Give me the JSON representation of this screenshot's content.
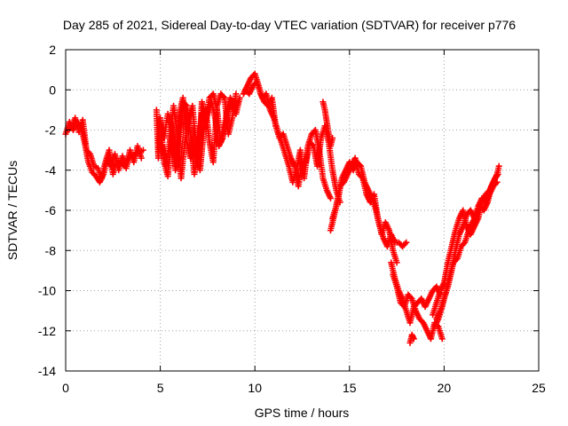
{
  "chart_data": {
    "type": "scatter",
    "title": "Day 285 of 2021, Sidereal Day-to-day VTEC variation (SDTVAR) for receiver p776",
    "xlabel": "GPS time / hours",
    "ylabel": "SDTVAR / TECUs",
    "xlim": [
      0,
      25
    ],
    "ylim": [
      -14,
      2
    ],
    "xticks": [
      "0",
      "5",
      "10",
      "15",
      "20",
      "25"
    ],
    "yticks": [
      "2",
      "0",
      "-2",
      "-4",
      "-6",
      "-8",
      "-10",
      "-12",
      "-14"
    ],
    "grid": true,
    "marker": "plus",
    "color": "#ff0000",
    "series": [
      {
        "x": [
          0.0,
          0.2,
          0.4,
          0.6,
          0.8,
          1.0,
          1.2,
          1.4,
          1.6,
          1.8,
          2.0,
          2.2,
          2.4,
          2.6,
          2.8,
          3.0,
          3.2,
          3.4,
          3.6,
          3.8,
          4.0
        ],
        "y": [
          -2.2,
          -1.6,
          -2.0,
          -1.6,
          -1.8,
          -2.6,
          -3.6,
          -4.1,
          -4.3,
          -4.6,
          -4.2,
          -3.4,
          -3.8,
          -3.2,
          -4.0,
          -3.3,
          -3.9,
          -3.0,
          -3.6,
          -2.8,
          -3.4
        ]
      },
      {
        "x": [
          0.1,
          0.3,
          0.5,
          0.7,
          0.9,
          1.1,
          1.3,
          1.5,
          1.7,
          1.9,
          2.1,
          2.3,
          2.5,
          2.7,
          2.9,
          3.1,
          3.3,
          3.5,
          3.7,
          3.9,
          4.1
        ],
        "y": [
          -2.0,
          -1.9,
          -1.4,
          -2.1,
          -1.5,
          -3.0,
          -3.2,
          -3.8,
          -3.9,
          -4.4,
          -3.6,
          -3.0,
          -4.2,
          -3.5,
          -3.6,
          -3.8,
          -3.4,
          -3.3,
          -3.2,
          -3.1,
          -3.0
        ]
      },
      {
        "x": [
          4.8,
          4.9,
          5.0,
          5.2,
          5.4,
          5.6,
          5.8,
          6.0,
          6.2,
          6.4,
          6.6,
          6.8,
          7.0,
          7.2,
          7.4,
          7.6,
          7.8,
          8.0,
          8.2,
          8.4,
          8.6,
          8.8,
          9.0,
          9.2
        ],
        "y": [
          -1.0,
          -3.4,
          -1.4,
          -3.6,
          -4.3,
          -2.2,
          -3.8,
          -1.2,
          -0.4,
          -2.6,
          -3.4,
          -1.8,
          -3.8,
          -0.6,
          -1.6,
          -0.4,
          -0.2,
          -1.0,
          -2.6,
          -2.0,
          -1.0,
          -0.6,
          -1.2,
          -0.4
        ]
      },
      {
        "x": [
          5.0,
          5.2,
          5.4,
          5.6,
          5.8,
          6.0,
          6.2,
          6.4,
          6.6,
          6.8,
          7.0,
          7.2,
          7.4,
          7.6,
          7.8,
          8.0,
          8.2,
          8.4,
          8.6,
          8.8,
          9.0
        ],
        "y": [
          -1.6,
          -2.4,
          -1.2,
          -1.8,
          -4.0,
          -3.2,
          -0.6,
          -0.8,
          -2.2,
          -4.2,
          -3.0,
          -1.2,
          -1.0,
          -2.6,
          -3.6,
          -0.8,
          -0.2,
          -0.4,
          -2.2,
          -1.4,
          -0.2
        ]
      },
      {
        "x": [
          5.1,
          5.3,
          5.5,
          5.7,
          5.9,
          6.1,
          6.3,
          6.5,
          6.7,
          6.9,
          7.1,
          7.3,
          7.5,
          7.7,
          7.9,
          8.1,
          8.3,
          8.5,
          8.7,
          8.9
        ],
        "y": [
          -2.8,
          -3.8,
          -2.6,
          -0.8,
          -2.2,
          -4.4,
          -2.6,
          -1.4,
          -0.8,
          -3.0,
          -4.0,
          -2.0,
          -1.2,
          -0.6,
          -1.4,
          -2.8,
          -2.4,
          -1.2,
          -0.4,
          -0.8
        ]
      },
      {
        "x": [
          9.4,
          9.6,
          9.8,
          10.0,
          10.2,
          10.4,
          10.6,
          10.8,
          11.0,
          11.2,
          11.4,
          11.6,
          11.8,
          12.0,
          12.2,
          12.4,
          12.6,
          12.8,
          13.0,
          13.2,
          13.4,
          13.6,
          13.8,
          14.0
        ],
        "y": [
          -0.2,
          0.2,
          0.6,
          0.8,
          0.2,
          -0.4,
          -0.2,
          -1.0,
          -1.4,
          -2.0,
          -2.6,
          -3.2,
          -3.8,
          -4.6,
          -4.0,
          -3.0,
          -4.4,
          -2.8,
          -2.2,
          -2.0,
          -3.0,
          -4.4,
          -5.0,
          -5.4
        ]
      },
      {
        "x": [
          9.5,
          9.7,
          9.9,
          10.1,
          10.3,
          10.5,
          10.7,
          10.9,
          11.1,
          11.3,
          11.5,
          11.7,
          11.9,
          12.1,
          12.3,
          12.5,
          12.7,
          12.9,
          13.1,
          13.3,
          13.5,
          13.7,
          13.9,
          14.1,
          14.3,
          14.5
        ],
        "y": [
          0.0,
          -0.2,
          0.2,
          0.4,
          -0.2,
          -0.6,
          -0.8,
          -0.4,
          -1.8,
          -2.4,
          -2.2,
          -2.8,
          -3.4,
          -3.8,
          -4.8,
          -3.6,
          -3.6,
          -2.6,
          -2.8,
          -3.8,
          -2.4,
          -1.8,
          -2.6,
          -4.0,
          -5.0,
          -5.6
        ]
      },
      {
        "x": [
          13.6,
          13.7,
          13.8,
          13.9,
          14.0,
          14.1
        ],
        "y": [
          -0.6,
          -1.0,
          -1.6,
          -2.2,
          -2.8,
          -2.4
        ]
      },
      {
        "x": [
          14.0,
          14.2,
          14.4,
          14.6,
          14.8,
          15.0,
          15.2,
          15.4,
          15.6,
          15.8,
          16.0,
          16.2,
          16.4,
          16.6,
          16.8,
          17.0,
          17.2,
          17.4,
          17.6,
          17.8,
          18.0
        ],
        "y": [
          -7.0,
          -6.2,
          -5.4,
          -4.4,
          -4.0,
          -3.6,
          -4.0,
          -3.6,
          -3.8,
          -4.6,
          -5.0,
          -5.4,
          -6.0,
          -6.8,
          -7.4,
          -7.8,
          -7.2,
          -7.6,
          -7.6,
          -7.8,
          -7.6
        ]
      },
      {
        "x": [
          14.1,
          14.3,
          14.5,
          14.7,
          14.9,
          15.1,
          15.3,
          15.5,
          15.7,
          15.9,
          16.1,
          16.3,
          16.5,
          16.7,
          16.9,
          17.1,
          17.3,
          17.5
        ],
        "y": [
          -6.4,
          -5.8,
          -4.8,
          -4.6,
          -4.2,
          -3.8,
          -3.4,
          -4.2,
          -4.4,
          -5.2,
          -5.6,
          -5.2,
          -6.4,
          -7.2,
          -6.6,
          -7.0,
          -8.0,
          -8.6
        ]
      },
      {
        "x": [
          17.2,
          17.4,
          17.6,
          17.8,
          18.0,
          18.2,
          18.4,
          18.6,
          18.8,
          19.0,
          19.2,
          19.4,
          19.6,
          19.8
        ],
        "y": [
          -8.6,
          -9.4,
          -10.0,
          -10.4,
          -11.0,
          -11.6,
          -10.8,
          -10.6,
          -10.4,
          -10.8,
          -10.4,
          -10.0,
          -9.8,
          -10.2
        ]
      },
      {
        "x": [
          17.3,
          17.5,
          17.7,
          17.9,
          18.1,
          18.3,
          18.5,
          18.7,
          18.9,
          19.1,
          19.3,
          19.5,
          19.7,
          19.9
        ],
        "y": [
          -9.2,
          -9.8,
          -10.6,
          -10.8,
          -10.2,
          -10.4,
          -11.0,
          -11.4,
          -11.6,
          -12.0,
          -12.4,
          -11.6,
          -11.8,
          -12.4
        ]
      },
      {
        "x": [
          18.2,
          18.3,
          18.4
        ],
        "y": [
          -12.6,
          -12.2,
          -12.4
        ]
      },
      {
        "x": [
          19.4,
          19.6,
          19.8,
          20.0,
          20.2,
          20.4,
          20.6,
          20.8,
          21.0,
          21.2,
          21.4,
          21.6,
          21.8,
          22.0,
          22.2,
          22.4,
          22.6,
          22.8,
          22.9
        ],
        "y": [
          -11.2,
          -10.6,
          -10.0,
          -9.6,
          -8.6,
          -7.8,
          -7.0,
          -6.4,
          -6.0,
          -6.8,
          -7.2,
          -6.8,
          -6.4,
          -5.6,
          -5.2,
          -5.0,
          -4.6,
          -4.2,
          -3.8
        ]
      },
      {
        "x": [
          19.5,
          19.7,
          19.9,
          20.1,
          20.3,
          20.5,
          20.7,
          20.9,
          21.1,
          21.3,
          21.5,
          21.7,
          21.9,
          22.1,
          22.3,
          22.5,
          22.7,
          22.85
        ],
        "y": [
          -11.8,
          -11.4,
          -10.8,
          -10.0,
          -9.2,
          -8.6,
          -8.4,
          -7.8,
          -7.6,
          -7.0,
          -6.6,
          -6.2,
          -5.8,
          -6.0,
          -5.6,
          -4.8,
          -4.4,
          -4.2
        ]
      },
      {
        "x": [
          19.6,
          19.8,
          20.0,
          20.2,
          20.4,
          20.6,
          20.8,
          21.0,
          21.2,
          21.4,
          21.6,
          21.8,
          22.0,
          22.2,
          22.4,
          22.6,
          22.8
        ],
        "y": [
          -11.4,
          -11.0,
          -10.4,
          -9.8,
          -9.0,
          -8.0,
          -7.2,
          -6.8,
          -6.2,
          -6.0,
          -6.4,
          -5.8,
          -5.4,
          -5.6,
          -5.2,
          -4.8,
          -4.6
        ]
      }
    ]
  }
}
